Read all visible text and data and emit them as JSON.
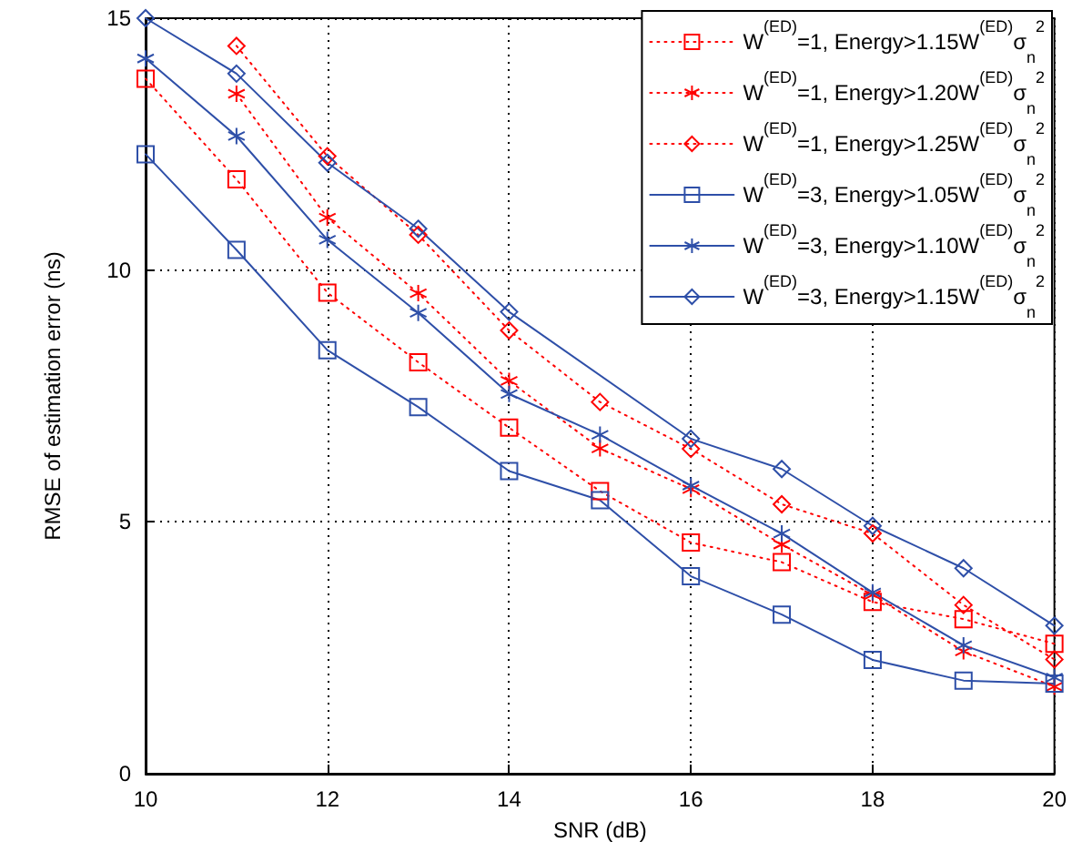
{
  "chart_data": {
    "type": "line",
    "xlabel": "SNR (dB)",
    "ylabel": "RMSE of estimation error (ns)",
    "x": [
      10,
      11,
      12,
      13,
      14,
      15,
      16,
      17,
      18,
      19,
      20
    ],
    "xlim": [
      10,
      20
    ],
    "xticks": [
      10,
      12,
      14,
      16,
      18,
      20
    ],
    "ylim": [
      0,
      15
    ],
    "yticks": [
      0,
      5,
      10,
      15
    ],
    "grid": true,
    "legend": "top right",
    "series": [
      {
        "name": "W$^{(ED)}$=1, Energy>1.15W$^{(ED)}$σ$_{n}$$^{2}$",
        "color": "#ff0000",
        "marker": "square",
        "line_style": "dotted",
        "values": [
          13.8,
          11.8,
          9.55,
          8.17,
          6.87,
          5.61,
          4.59,
          4.2,
          3.41,
          3.07,
          2.58
        ]
      },
      {
        "name": "W$^{(ED)}$=1, Energy>1.20W$^{(ED)}$σ$_{n}$$^{2}$",
        "color": "#ff0000",
        "marker": "star",
        "line_style": "dotted",
        "values": [
          null,
          13.5,
          11.04,
          9.54,
          7.8,
          6.46,
          5.65,
          4.55,
          3.55,
          2.43,
          1.73
        ]
      },
      {
        "name": "W$^{(ED)}$=1, Energy>1.25W$^{(ED)}$σ$_{n}$$^{2}$",
        "color": "#ff0000",
        "marker": "diamond",
        "line_style": "dotted",
        "values": [
          null,
          14.45,
          12.26,
          10.7,
          8.8,
          7.38,
          6.45,
          5.35,
          4.77,
          3.35,
          2.27
        ]
      },
      {
        "name": "W$^{(ED)}$=3, Energy>1.05W$^{(ED)}$σ$_{n}$$^{2}$",
        "color": "#2e4fa8",
        "marker": "square",
        "line_style": "solid",
        "values": [
          12.3,
          10.4,
          8.41,
          7.28,
          6.01,
          5.43,
          3.92,
          3.16,
          2.26,
          1.85,
          1.79
        ]
      },
      {
        "name": "W$^{(ED)}$=3, Energy>1.10W$^{(ED)}$σ$_{n}$$^{2}$",
        "color": "#2e4fa8",
        "marker": "star",
        "line_style": "solid",
        "values": [
          14.2,
          12.66,
          10.6,
          9.15,
          7.54,
          6.73,
          5.72,
          4.77,
          3.6,
          2.55,
          1.91
        ]
      },
      {
        "name": "W$^{(ED)}$=3, Energy>1.15W$^{(ED)}$σ$_{n}$$^{2}$",
        "color": "#2e4fa8",
        "marker": "diamond",
        "line_style": "solid",
        "values": [
          15,
          13.9,
          12.13,
          10.82,
          9.17,
          null,
          6.65,
          6.05,
          4.92,
          4.08,
          2.94
        ]
      }
    ]
  }
}
